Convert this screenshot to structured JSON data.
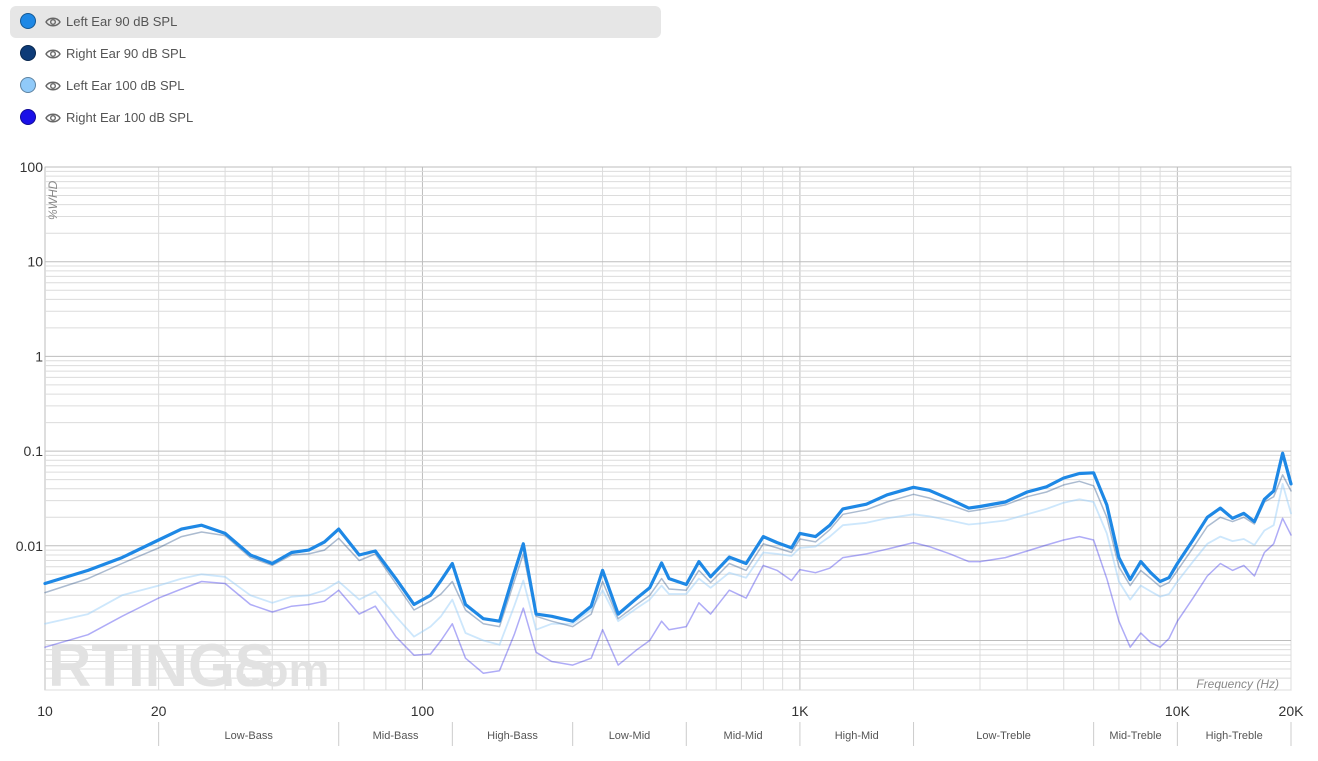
{
  "legend": {
    "items": [
      {
        "label": "Left Ear 90 dB SPL",
        "color": "#1e88e5",
        "active": true
      },
      {
        "label": "Right Ear 90 dB SPL",
        "color": "#0d3b78",
        "active": false
      },
      {
        "label": "Left Ear 100 dB SPL",
        "color": "#90caf9",
        "active": false
      },
      {
        "label": "Right Ear 100 dB SPL",
        "color": "#1a10e8",
        "active": false
      }
    ]
  },
  "watermark": {
    "brand": "RTINGS",
    "suffix": ".com"
  },
  "chart_data": {
    "type": "line",
    "xlabel": "Frequency (Hz)",
    "ylabel": "%WHD",
    "xscale": "log",
    "yscale": "log",
    "xlim": [
      10,
      20000
    ],
    "ylim": [
      0.0003,
      100
    ],
    "grid": true,
    "legend_position": "top-left",
    "x_ticks": [
      {
        "value": 10,
        "label": "10"
      },
      {
        "value": 20,
        "label": "20"
      },
      {
        "value": 100,
        "label": "100"
      },
      {
        "value": 1000,
        "label": "1K"
      },
      {
        "value": 10000,
        "label": "10K"
      },
      {
        "value": 20000,
        "label": "20K"
      }
    ],
    "y_ticks": [
      {
        "value": 100,
        "label": "100"
      },
      {
        "value": 10,
        "label": "10"
      },
      {
        "value": 1,
        "label": "1"
      },
      {
        "value": 0.1,
        "label": "0.1"
      },
      {
        "value": 0.01,
        "label": "0.01"
      }
    ],
    "bands": [
      {
        "label": "Low-Bass",
        "from": 20,
        "to": 60
      },
      {
        "label": "Mid-Bass",
        "from": 60,
        "to": 120
      },
      {
        "label": "High-Bass",
        "from": 120,
        "to": 250
      },
      {
        "label": "Low-Mid",
        "from": 250,
        "to": 500
      },
      {
        "label": "Mid-Mid",
        "from": 500,
        "to": 1000
      },
      {
        "label": "High-Mid",
        "from": 1000,
        "to": 2000
      },
      {
        "label": "Low-Treble",
        "from": 2000,
        "to": 6000
      },
      {
        "label": "Mid-Treble",
        "from": 6000,
        "to": 10000
      },
      {
        "label": "High-Treble",
        "from": 10000,
        "to": 20000
      }
    ],
    "x": [
      10,
      13,
      16,
      20,
      23,
      26,
      30,
      35,
      40,
      45,
      50,
      55,
      60,
      68,
      75,
      85,
      95,
      105,
      112,
      120,
      130,
      145,
      160,
      175,
      185,
      200,
      220,
      250,
      280,
      300,
      330,
      370,
      400,
      430,
      450,
      500,
      540,
      580,
      650,
      720,
      800,
      870,
      950,
      1000,
      1100,
      1200,
      1300,
      1500,
      1700,
      2000,
      2200,
      2500,
      2800,
      3000,
      3500,
      4000,
      4500,
      5000,
      5500,
      6000,
      6500,
      7000,
      7500,
      8000,
      8500,
      9000,
      9500,
      10000,
      11000,
      12000,
      13000,
      14000,
      15000,
      16000,
      17000,
      18000,
      19000,
      20000
    ],
    "series": [
      {
        "name": "Left Ear 90 dB SPL",
        "color": "#1e88e5",
        "width": 3.2,
        "opacity": 1,
        "values": [
          0.004,
          0.0055,
          0.0075,
          0.0115,
          0.015,
          0.0165,
          0.0135,
          0.008,
          0.0065,
          0.0085,
          0.009,
          0.011,
          0.015,
          0.008,
          0.0088,
          0.0045,
          0.0024,
          0.003,
          0.0043,
          0.0065,
          0.0024,
          0.0017,
          0.0016,
          0.0052,
          0.0105,
          0.0019,
          0.0018,
          0.0016,
          0.0023,
          0.0055,
          0.0019,
          0.0028,
          0.0036,
          0.0066,
          0.0045,
          0.0039,
          0.0068,
          0.0047,
          0.0076,
          0.0065,
          0.0125,
          0.0108,
          0.0095,
          0.0135,
          0.0125,
          0.0165,
          0.0245,
          0.0275,
          0.0345,
          0.0415,
          0.0385,
          0.031,
          0.025,
          0.026,
          0.029,
          0.037,
          0.042,
          0.052,
          0.058,
          0.059,
          0.027,
          0.0075,
          0.0044,
          0.0068,
          0.0052,
          0.0042,
          0.0046,
          0.0065,
          0.0115,
          0.02,
          0.025,
          0.0195,
          0.022,
          0.018,
          0.031,
          0.038,
          0.095,
          0.045
        ]
      },
      {
        "name": "Right Ear 90 dB SPL",
        "color": "#0d3b78",
        "width": 1.5,
        "opacity": 0.35,
        "values": [
          0.0032,
          0.0045,
          0.0065,
          0.0095,
          0.0125,
          0.014,
          0.0128,
          0.0075,
          0.0062,
          0.008,
          0.0082,
          0.009,
          0.012,
          0.007,
          0.0082,
          0.004,
          0.0021,
          0.0026,
          0.0031,
          0.0042,
          0.0021,
          0.0015,
          0.0014,
          0.0042,
          0.0082,
          0.0018,
          0.0016,
          0.0014,
          0.0019,
          0.0042,
          0.0017,
          0.0024,
          0.003,
          0.0045,
          0.0035,
          0.0034,
          0.0055,
          0.0041,
          0.0065,
          0.0055,
          0.0105,
          0.0095,
          0.0085,
          0.0118,
          0.011,
          0.0148,
          0.0215,
          0.024,
          0.029,
          0.035,
          0.032,
          0.027,
          0.023,
          0.024,
          0.027,
          0.033,
          0.037,
          0.044,
          0.048,
          0.043,
          0.02,
          0.006,
          0.0038,
          0.0055,
          0.0045,
          0.0037,
          0.0041,
          0.0055,
          0.0095,
          0.016,
          0.02,
          0.018,
          0.02,
          0.017,
          0.029,
          0.033,
          0.056,
          0.038
        ]
      },
      {
        "name": "Left Ear 100 dB SPL",
        "color": "#90caf9",
        "width": 1.8,
        "opacity": 0.45,
        "values": [
          0.0015,
          0.0019,
          0.003,
          0.0038,
          0.0045,
          0.005,
          0.0047,
          0.003,
          0.0025,
          0.0029,
          0.003,
          0.0034,
          0.0042,
          0.0027,
          0.0033,
          0.0018,
          0.0011,
          0.0014,
          0.0018,
          0.0027,
          0.0012,
          0.001,
          0.0009,
          0.0023,
          0.0043,
          0.0013,
          0.0015,
          0.0015,
          0.0021,
          0.0034,
          0.0016,
          0.0022,
          0.0027,
          0.0038,
          0.0031,
          0.0031,
          0.0045,
          0.0036,
          0.0052,
          0.0046,
          0.0085,
          0.0082,
          0.0078,
          0.0095,
          0.0098,
          0.0125,
          0.0165,
          0.0175,
          0.0195,
          0.0215,
          0.0205,
          0.0185,
          0.0168,
          0.0172,
          0.0185,
          0.0215,
          0.0245,
          0.0285,
          0.031,
          0.029,
          0.0135,
          0.0042,
          0.0027,
          0.0038,
          0.0033,
          0.0029,
          0.0031,
          0.0042,
          0.0068,
          0.0105,
          0.0125,
          0.0112,
          0.0118,
          0.0102,
          0.0145,
          0.0165,
          0.045,
          0.022
        ]
      },
      {
        "name": "Right Ear 100 dB SPL",
        "color": "#1a10e8",
        "width": 1.5,
        "opacity": 0.35,
        "values": [
          0.00085,
          0.00115,
          0.0018,
          0.0028,
          0.0035,
          0.0042,
          0.004,
          0.0024,
          0.002,
          0.0023,
          0.0024,
          0.0026,
          0.0034,
          0.0019,
          0.0023,
          0.0011,
          0.0007,
          0.00072,
          0.001,
          0.0015,
          0.00065,
          0.00045,
          0.00048,
          0.00115,
          0.0022,
          0.00075,
          0.0006,
          0.00055,
          0.00065,
          0.0013,
          0.00055,
          0.0008,
          0.001,
          0.0016,
          0.0013,
          0.0014,
          0.0025,
          0.0019,
          0.0034,
          0.0028,
          0.0062,
          0.0055,
          0.0043,
          0.0056,
          0.0052,
          0.0058,
          0.0075,
          0.0082,
          0.0092,
          0.0108,
          0.0098,
          0.0082,
          0.0068,
          0.0068,
          0.0075,
          0.0088,
          0.0102,
          0.0115,
          0.0125,
          0.0115,
          0.0045,
          0.0016,
          0.00085,
          0.0012,
          0.00095,
          0.00085,
          0.00105,
          0.0016,
          0.0028,
          0.0048,
          0.0065,
          0.0055,
          0.0062,
          0.0048,
          0.0085,
          0.0105,
          0.0195,
          0.013
        ]
      }
    ]
  }
}
